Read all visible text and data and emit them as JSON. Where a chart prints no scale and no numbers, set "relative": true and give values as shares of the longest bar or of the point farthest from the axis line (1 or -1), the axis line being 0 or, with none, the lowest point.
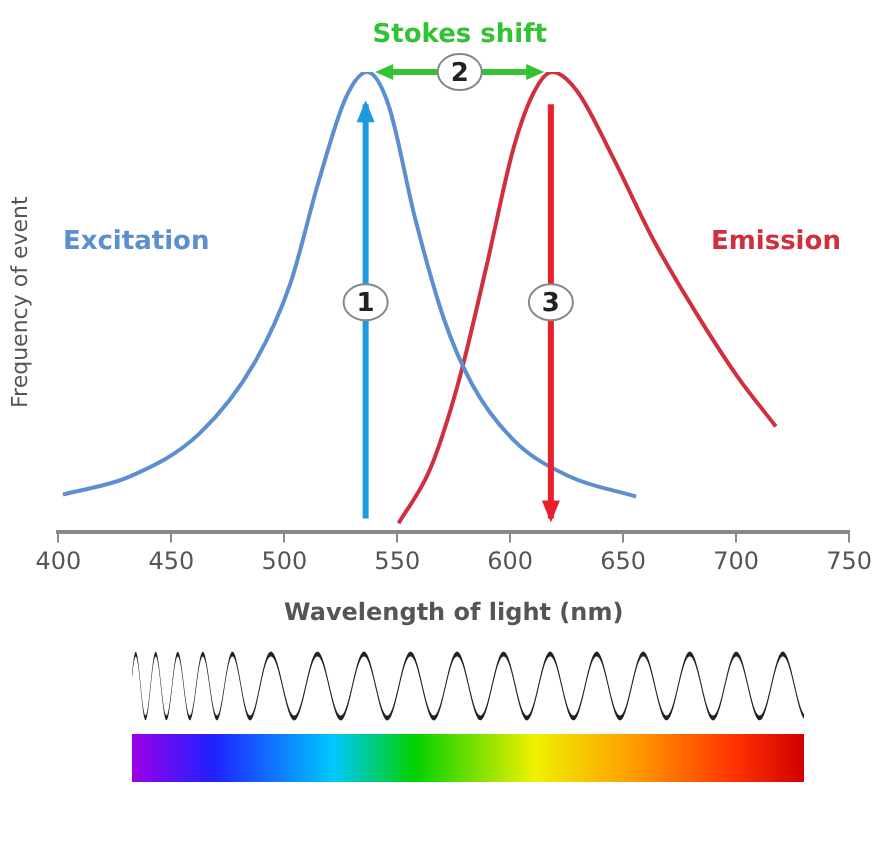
{
  "chart_data": {
    "type": "line",
    "relative": true,
    "xlabel": "Wavelength of light (nm)",
    "ylabel": "Frequency of event",
    "xlim": [
      400,
      750
    ],
    "xticks": [
      400,
      450,
      500,
      550,
      600,
      650,
      700,
      750
    ],
    "grid": false,
    "legend": false,
    "marker": "none",
    "line_style": "solid",
    "series": [
      {
        "name": "Excitation",
        "color": "#5b8fd0",
        "x": [
          402,
          431.5,
          462.5,
          487,
          502.7,
          515,
          527.4,
          536.7,
          546,
          558,
          570.7,
          583,
          601.6,
          626,
          655.7
        ],
        "values": [
          0.082,
          0.121,
          0.215,
          0.37,
          0.541,
          0.759,
          0.946,
          1.0,
          0.93,
          0.68,
          0.463,
          0.323,
          0.2,
          0.122,
          0.078
        ]
      },
      {
        "name": "Emission",
        "color": "#d0303e",
        "x": [
          550.6,
          564.5,
          576.9,
          589.2,
          601.6,
          610.9,
          618.6,
          629.4,
          644.9,
          663.4,
          682,
          700.5,
          717.6
        ],
        "values": [
          0.02,
          0.137,
          0.323,
          0.572,
          0.837,
          0.96,
          1.0,
          0.96,
          0.82,
          0.635,
          0.479,
          0.339,
          0.23
        ]
      }
    ],
    "ref_lines": [
      {
        "axis": "x",
        "value": 536,
        "color": "#1e9ae0"
      },
      {
        "axis": "x",
        "value": 618,
        "color": "#e8202a"
      }
    ],
    "annotations": [
      {
        "text": "1",
        "x": 536,
        "y": 0.5
      },
      "Stokes shift",
      "2",
      {
        "text": "3",
        "x": 618,
        "y": 0.5
      }
    ]
  }
}
